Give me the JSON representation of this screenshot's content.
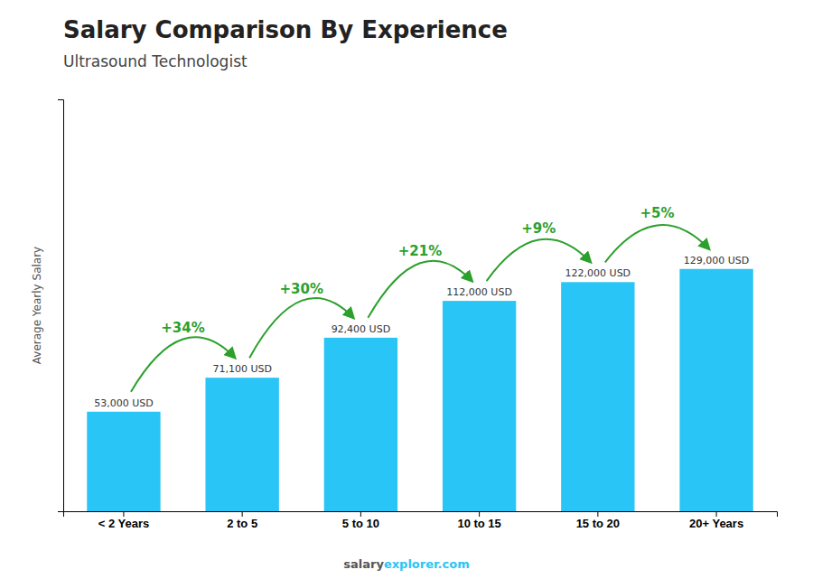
{
  "chart_data": {
    "type": "bar",
    "title": "Salary Comparison By Experience",
    "subtitle": "Ultrasound Technologist",
    "categories": [
      "< 2 Years",
      "2 to 5",
      "5 to 10",
      "10 to 15",
      "15 to 20",
      "20+ Years"
    ],
    "values": [
      53000,
      71100,
      92400,
      112000,
      122000,
      129000
    ],
    "value_labels": [
      "53,000 USD",
      "71,100 USD",
      "92,400 USD",
      "112,000 USD",
      "122,000 USD",
      "129,000 USD"
    ],
    "data_labels": true,
    "color": "#29c5f6",
    "annotations": [
      "+34%",
      "+30%",
      "+21%",
      "+9%",
      "+5%"
    ],
    "y_label": "Average Yearly Salary",
    "watermark": [
      "salary",
      "explorer.com"
    ],
    "ylim": [
      0,
      219300
    ],
    "yticks": [],
    "tick_labels": "x",
    "grid": false
  }
}
